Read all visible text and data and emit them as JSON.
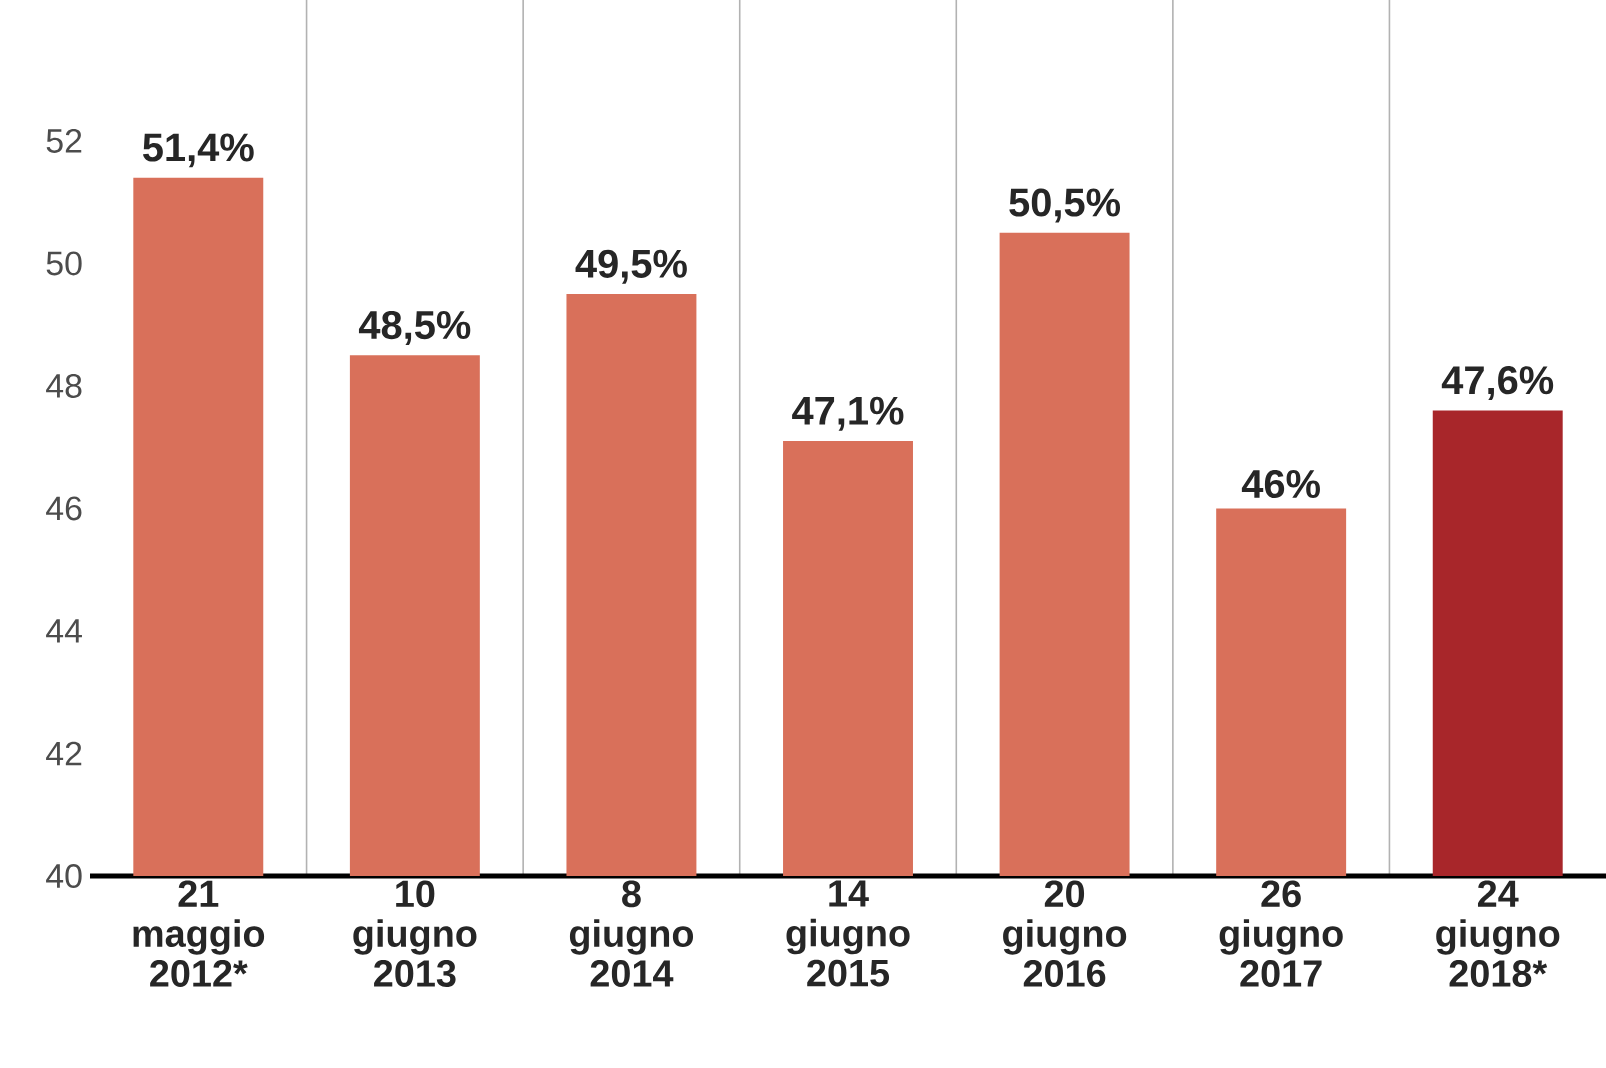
{
  "chart_data": {
    "type": "bar",
    "categories": [
      "21 maggio 2012*",
      "10 giugno 2013",
      "8 giugno 2014",
      "14 giugno 2015",
      "20 giugno 2016",
      "26 giugno 2017",
      "24 giugno 2018*"
    ],
    "values": [
      51.4,
      48.5,
      49.5,
      47.1,
      50.5,
      46,
      47.6
    ],
    "colors": [
      "#d9705a",
      "#d9705a",
      "#d9705a",
      "#d9705a",
      "#d9705a",
      "#d9705a",
      "#a8262a"
    ],
    "value_labels": [
      "51,4%",
      "48,5%",
      "49,5%",
      "47,1%",
      "50,5%",
      "46%",
      "47,6%"
    ],
    "ylim": [
      40,
      54.3
    ],
    "yticks": [
      40,
      42,
      44,
      46,
      48,
      50,
      52
    ],
    "grid": "x"
  }
}
